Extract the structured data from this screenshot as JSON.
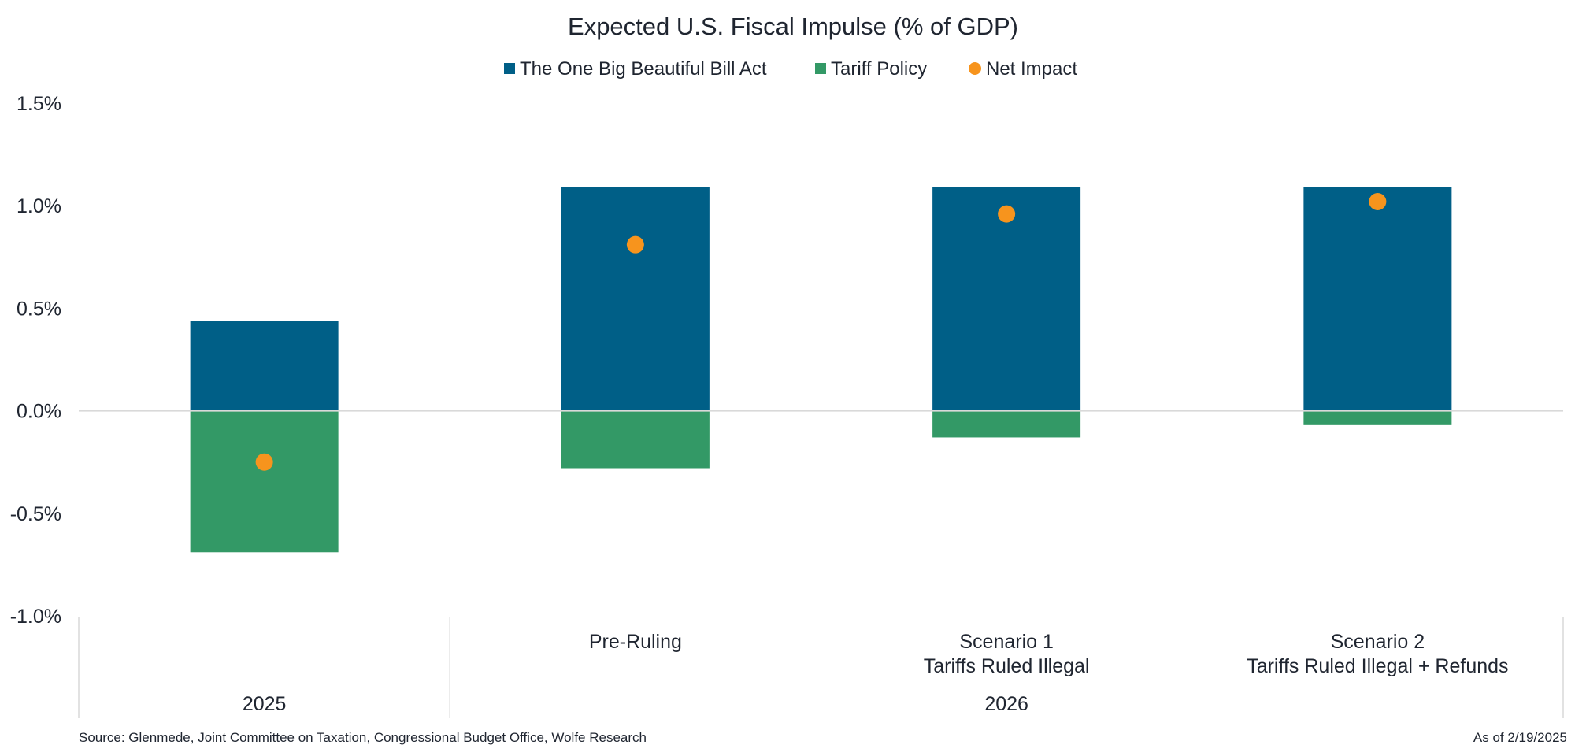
{
  "chart_data": {
    "type": "bar",
    "stacked": true,
    "title": "Expected U.S. Fiscal Impulse (% of GDP)",
    "legend": [
      {
        "name": "The One Big Beautiful Bill Act",
        "color": "#005f87",
        "marker": "square"
      },
      {
        "name": "Tariff Policy",
        "color": "#339966",
        "marker": "square"
      },
      {
        "name": "Net Impact",
        "color": "#f7941d",
        "marker": "circle"
      }
    ],
    "categories": [
      {
        "label_lines": [
          ""
        ]
      },
      {
        "label_lines": [
          "Pre-Ruling"
        ]
      },
      {
        "label_lines": [
          "Scenario 1",
          "Tariffs Ruled Illegal"
        ]
      },
      {
        "label_lines": [
          "Scenario 2",
          "Tariffs Ruled Illegal + Refunds"
        ]
      }
    ],
    "groups": [
      {
        "label": "2025",
        "start": 0,
        "end": 0
      },
      {
        "label": "2026",
        "start": 1,
        "end": 3
      }
    ],
    "series": [
      {
        "name": "The One Big Beautiful Bill Act",
        "values": [
          0.44,
          1.09,
          1.09,
          1.09
        ]
      },
      {
        "name": "Tariff Policy",
        "values": [
          -0.69,
          -0.28,
          -0.13,
          -0.07
        ]
      }
    ],
    "net_impact": [
      -0.25,
      0.81,
      0.96,
      1.02
    ],
    "yticks": [
      1.5,
      1.0,
      0.5,
      0.0,
      -0.5,
      -1.0
    ],
    "ytick_labels": [
      "1.5%",
      "1.0%",
      "0.5%",
      "0.0%",
      "-0.5%",
      "-1.0%"
    ],
    "ylim": [
      -1.0,
      1.5
    ],
    "xlabel": "",
    "ylabel": ""
  },
  "footer": {
    "source": "Source: Glenmede, Joint Committee on Taxation, Congressional Budget Office, Wolfe Research",
    "as_of": "As of 2/19/2025"
  }
}
